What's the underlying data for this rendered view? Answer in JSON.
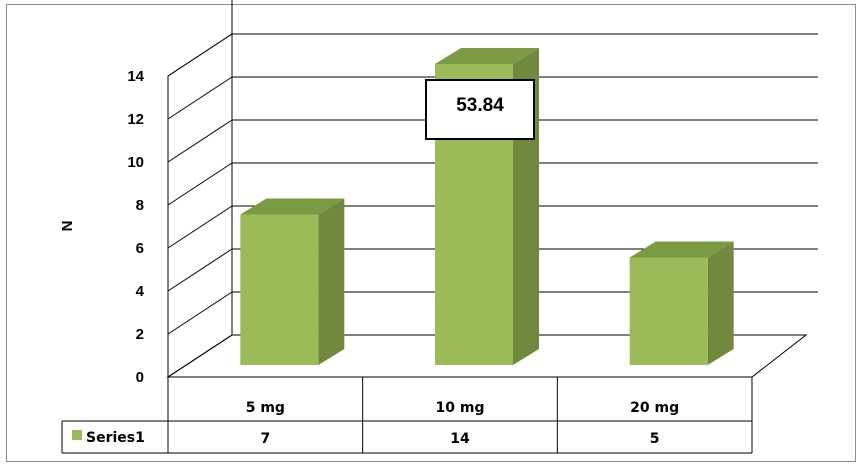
{
  "chart_data": {
    "type": "bar",
    "style": "3d-column",
    "categories": [
      "5 mg",
      "10 mg",
      "20 mg"
    ],
    "series": [
      {
        "name": "Series1",
        "values": [
          7,
          14,
          5
        ],
        "color": "#9bbb59",
        "side_color": "#71893f",
        "top_color": "#7b9a44"
      }
    ],
    "ylabel": "N",
    "ylim": [
      0,
      14
    ],
    "yticks": [
      "0",
      "2",
      "4",
      "6",
      "8",
      "10",
      "12",
      "14"
    ],
    "grid": true,
    "data_table": true,
    "annotation": {
      "text": "53.84",
      "category": "10 mg"
    }
  }
}
